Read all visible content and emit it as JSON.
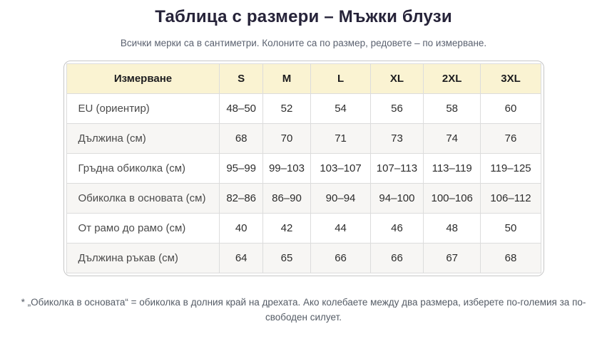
{
  "page": {
    "title": "Таблица с размери – Мъжки блузи",
    "subtitle": "Всички мерки са в сантиметри. Колоните са по размер, редовете – по измерване.",
    "footnote": "* „Обиколка в основата“ = обиколка в долния край на дрехата. Ако колебаете между два размера, изберете по-големия за по-свободен силует."
  },
  "table": {
    "header": [
      "Измерване",
      "S",
      "M",
      "L",
      "XL",
      "2XL",
      "3XL"
    ],
    "rows": [
      {
        "label": "EU (ориентир)",
        "values": [
          "48–50",
          "52",
          "54",
          "56",
          "58",
          "60"
        ]
      },
      {
        "label": "Дължина (см)",
        "values": [
          "68",
          "70",
          "71",
          "73",
          "74",
          "76"
        ]
      },
      {
        "label": "Гръдна обиколка (см)",
        "values": [
          "95–99",
          "99–103",
          "103–107",
          "107–113",
          "113–119",
          "119–125"
        ]
      },
      {
        "label": "Обиколка в основата (см)",
        "values": [
          "82–86",
          "86–90",
          "90–94",
          "94–100",
          "100–106",
          "106–112"
        ]
      },
      {
        "label": "От рамо до рамо (см)",
        "values": [
          "40",
          "42",
          "44",
          "46",
          "48",
          "50"
        ]
      },
      {
        "label": "Дължина ръкав (см)",
        "values": [
          "64",
          "65",
          "66",
          "66",
          "67",
          "68"
        ]
      }
    ]
  },
  "colors": {
    "title": "#262339",
    "header_background": "#faf3d2",
    "alternate_row_background": "#f7f6f4",
    "table_border": "#dcdcdc"
  }
}
